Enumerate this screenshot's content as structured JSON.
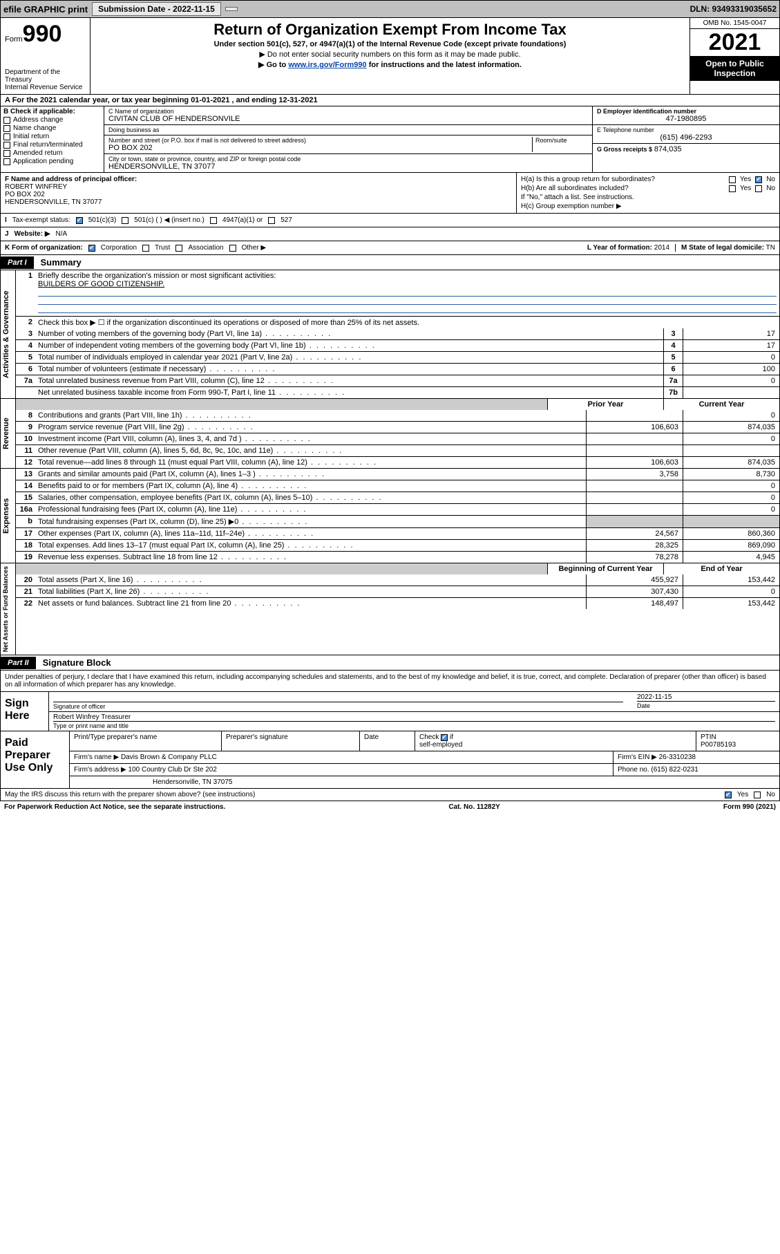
{
  "topbar": {
    "efile": "efile GRAPHIC print",
    "subdate_lbl": "Submission Date - 2022-11-15",
    "dln": "DLN: 93493319035652"
  },
  "header": {
    "form_word": "Form",
    "form_no": "990",
    "dept": "Department of the Treasury",
    "irs": "Internal Revenue Service",
    "title": "Return of Organization Exempt From Income Tax",
    "sub1": "Under section 501(c), 527, or 4947(a)(1) of the Internal Revenue Code (except private foundations)",
    "sub2": "▶ Do not enter social security numbers on this form as it may be made public.",
    "sub3_pre": "▶ Go to ",
    "sub3_link": "www.irs.gov/Form990",
    "sub3_post": " for instructions and the latest information.",
    "omb": "OMB No. 1545-0047",
    "year": "2021",
    "inspect": "Open to Public Inspection"
  },
  "rowA": "A For the 2021 calendar year, or tax year beginning 01-01-2021   , and ending 12-31-2021",
  "colB": {
    "hdr": "B Check if applicable:",
    "items": [
      "Address change",
      "Name change",
      "Initial return",
      "Final return/terminated",
      "Amended return",
      "Application pending"
    ]
  },
  "colC": {
    "name_lbl": "C Name of organization",
    "name": "CIVITAN CLUB OF HENDERSONVILE",
    "dba_lbl": "Doing business as",
    "dba": "",
    "addr_lbl": "Number and street (or P.O. box if mail is not delivered to street address)",
    "room_lbl": "Room/suite",
    "addr": "PO BOX 202",
    "city_lbl": "City or town, state or province, country, and ZIP or foreign postal code",
    "city": "HENDERSONVILLE, TN  37077"
  },
  "colD": {
    "ein_lbl": "D Employer identification number",
    "ein": "47-1980895",
    "tel_lbl": "E Telephone number",
    "tel": "(615) 496-2293",
    "gross_lbl": "G Gross receipts $",
    "gross": "874,035"
  },
  "rowF": {
    "lbl": "F Name and address of principal officer:",
    "name": "ROBERT WINFREY",
    "addr1": "PO BOX 202",
    "addr2": "HENDERSONVILLE, TN  37077"
  },
  "rowH": {
    "ha": "H(a)  Is this a group return for subordinates?",
    "hb": "H(b)  Are all subordinates included?",
    "hb_note": "If \"No,\" attach a list. See instructions.",
    "hc": "H(c)  Group exemption number ▶",
    "yes": "Yes",
    "no": "No"
  },
  "rowI": {
    "lbl": "Tax-exempt status:",
    "o1": "501(c)(3)",
    "o2": "501(c) (  ) ◀ (insert no.)",
    "o3": "4947(a)(1) or",
    "o4": "527"
  },
  "rowJ": {
    "lbl": "Website: ▶",
    "val": "N/A"
  },
  "rowK": {
    "lbl": "K Form of organization:",
    "opts": [
      "Corporation",
      "Trust",
      "Association",
      "Other ▶"
    ],
    "yof_lbl": "L Year of formation:",
    "yof": "2014",
    "dom_lbl": "M State of legal domicile:",
    "dom": "TN"
  },
  "part1": {
    "tag": "Part I",
    "title": "Summary"
  },
  "gov": {
    "label": "Activities & Governance",
    "q1_lbl": "Briefly describe the organization's mission or most significant activities:",
    "q1_val": "BUILDERS OF GOOD CITIZENSHIP.",
    "q2": "Check this box ▶ ☐  if the organization discontinued its operations or disposed of more than 25% of its net assets.",
    "rows": [
      {
        "n": "3",
        "d": "Number of voting members of the governing body (Part VI, line 1a)",
        "b": "3",
        "v": "17"
      },
      {
        "n": "4",
        "d": "Number of independent voting members of the governing body (Part VI, line 1b)",
        "b": "4",
        "v": "17"
      },
      {
        "n": "5",
        "d": "Total number of individuals employed in calendar year 2021 (Part V, line 2a)",
        "b": "5",
        "v": "0"
      },
      {
        "n": "6",
        "d": "Total number of volunteers (estimate if necessary)",
        "b": "6",
        "v": "100"
      },
      {
        "n": "7a",
        "d": "Total unrelated business revenue from Part VIII, column (C), line 12",
        "b": "7a",
        "v": "0"
      },
      {
        "n": "",
        "d": "Net unrelated business taxable income from Form 990-T, Part I, line 11",
        "b": "7b",
        "v": ""
      }
    ]
  },
  "colhdr": {
    "prior": "Prior Year",
    "current": "Current Year"
  },
  "rev": {
    "label": "Revenue",
    "rows": [
      {
        "n": "8",
        "d": "Contributions and grants (Part VIII, line 1h)",
        "p": "",
        "c": "0"
      },
      {
        "n": "9",
        "d": "Program service revenue (Part VIII, line 2g)",
        "p": "106,603",
        "c": "874,035"
      },
      {
        "n": "10",
        "d": "Investment income (Part VIII, column (A), lines 3, 4, and 7d )",
        "p": "",
        "c": "0"
      },
      {
        "n": "11",
        "d": "Other revenue (Part VIII, column (A), lines 5, 6d, 8c, 9c, 10c, and 11e)",
        "p": "",
        "c": ""
      },
      {
        "n": "12",
        "d": "Total revenue—add lines 8 through 11 (must equal Part VIII, column (A), line 12)",
        "p": "106,603",
        "c": "874,035"
      }
    ]
  },
  "exp": {
    "label": "Expenses",
    "rows": [
      {
        "n": "13",
        "d": "Grants and similar amounts paid (Part IX, column (A), lines 1–3 )",
        "p": "3,758",
        "c": "8,730"
      },
      {
        "n": "14",
        "d": "Benefits paid to or for members (Part IX, column (A), line 4)",
        "p": "",
        "c": "0"
      },
      {
        "n": "15",
        "d": "Salaries, other compensation, employee benefits (Part IX, column (A), lines 5–10)",
        "p": "",
        "c": "0"
      },
      {
        "n": "16a",
        "d": "Professional fundraising fees (Part IX, column (A), line 11e)",
        "p": "",
        "c": "0"
      },
      {
        "n": "b",
        "d": "Total fundraising expenses (Part IX, column (D), line 25) ▶0",
        "p": "SHADE",
        "c": "SHADE"
      },
      {
        "n": "17",
        "d": "Other expenses (Part IX, column (A), lines 11a–11d, 11f–24e)",
        "p": "24,567",
        "c": "860,360"
      },
      {
        "n": "18",
        "d": "Total expenses. Add lines 13–17 (must equal Part IX, column (A), line 25)",
        "p": "28,325",
        "c": "869,090"
      },
      {
        "n": "19",
        "d": "Revenue less expenses. Subtract line 18 from line 12",
        "p": "78,278",
        "c": "4,945"
      }
    ]
  },
  "na": {
    "label": "Net Assets or Fund Balances",
    "hdr_beg": "Beginning of Current Year",
    "hdr_end": "End of Year",
    "rows": [
      {
        "n": "20",
        "d": "Total assets (Part X, line 16)",
        "p": "455,927",
        "c": "153,442"
      },
      {
        "n": "21",
        "d": "Total liabilities (Part X, line 26)",
        "p": "307,430",
        "c": "0"
      },
      {
        "n": "22",
        "d": "Net assets or fund balances. Subtract line 21 from line 20",
        "p": "148,497",
        "c": "153,442"
      }
    ]
  },
  "part2": {
    "tag": "Part II",
    "title": "Signature Block"
  },
  "sig": {
    "decl": "Under penalties of perjury, I declare that I have examined this return, including accompanying schedules and statements, and to the best of my knowledge and belief, it is true, correct, and complete. Declaration of preparer (other than officer) is based on all information of which preparer has any knowledge.",
    "here": "Sign Here",
    "sig_lbl": "Signature of officer",
    "date_lbl": "Date",
    "date": "2022-11-15",
    "name": "Robert Winfrey  Treasurer",
    "name_lbl": "Type or print name and title"
  },
  "paid": {
    "lab": "Paid Preparer Use Only",
    "h1": "Print/Type preparer's name",
    "h2": "Preparer's signature",
    "h3": "Date",
    "h4": "Check ☑ if self-employed",
    "h5_lbl": "PTIN",
    "h5": "P00785193",
    "firm_lbl": "Firm's name   ▶",
    "firm": "Davis Brown & Company PLLC",
    "ein_lbl": "Firm's EIN ▶",
    "ein": "26-3310238",
    "addr_lbl": "Firm's address ▶",
    "addr1": "100 Country Club Dr Ste 202",
    "addr2": "Hendersonville, TN  37075",
    "phone_lbl": "Phone no.",
    "phone": "(615) 822-0231"
  },
  "discuss": {
    "q": "May the IRS discuss this return with the preparer shown above? (see instructions)",
    "yes": "Yes",
    "no": "No"
  },
  "footer": {
    "left": "For Paperwork Reduction Act Notice, see the separate instructions.",
    "mid": "Cat. No. 11282Y",
    "right": "Form 990 (2021)"
  }
}
